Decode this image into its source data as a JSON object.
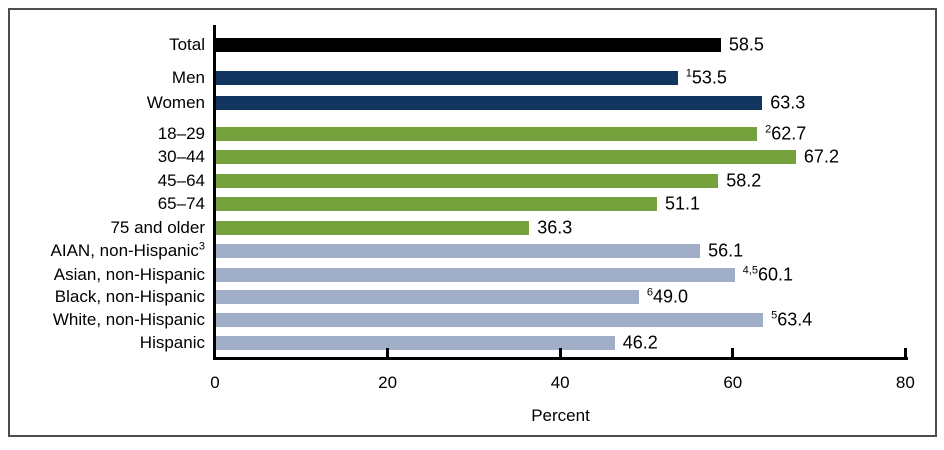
{
  "chart_data": {
    "type": "bar",
    "orientation": "horizontal",
    "title": "",
    "xlabel": "Percent",
    "ylabel": "",
    "xlim": [
      0,
      80
    ],
    "x_ticks": [
      0,
      20,
      40,
      60,
      80
    ],
    "grid": false,
    "legend": false,
    "groups": {
      "total": {
        "color": "#000000"
      },
      "sex": {
        "color": "#12355f"
      },
      "age": {
        "color": "#76a23d"
      },
      "race": {
        "color": "#a1aec8"
      }
    },
    "rows": [
      {
        "label": "Total",
        "label_sup": "",
        "value": 58.5,
        "value_text": "58.5",
        "value_sup": "",
        "group": "total"
      },
      {
        "label": "Men",
        "label_sup": "",
        "value": 53.5,
        "value_text": "53.5",
        "value_sup": "1",
        "group": "sex"
      },
      {
        "label": "Women",
        "label_sup": "",
        "value": 63.3,
        "value_text": "63.3",
        "value_sup": "",
        "group": "sex"
      },
      {
        "label": "18–29",
        "label_sup": "",
        "value": 62.7,
        "value_text": "62.7",
        "value_sup": "2",
        "group": "age"
      },
      {
        "label": "30–44",
        "label_sup": "",
        "value": 67.2,
        "value_text": "67.2",
        "value_sup": "",
        "group": "age"
      },
      {
        "label": "45–64",
        "label_sup": "",
        "value": 58.2,
        "value_text": "58.2",
        "value_sup": "",
        "group": "age"
      },
      {
        "label": "65–74",
        "label_sup": "",
        "value": 51.1,
        "value_text": "51.1",
        "value_sup": "",
        "group": "age"
      },
      {
        "label": "75 and older",
        "label_sup": "",
        "value": 36.3,
        "value_text": "36.3",
        "value_sup": "",
        "group": "age"
      },
      {
        "label": "AIAN, non-Hispanic",
        "label_sup": "3",
        "value": 56.1,
        "value_text": "56.1",
        "value_sup": "",
        "group": "race"
      },
      {
        "label": "Asian, non-Hispanic",
        "label_sup": "",
        "value": 60.1,
        "value_text": "60.1",
        "value_sup": "4,5",
        "group": "race"
      },
      {
        "label": "Black, non-Hispanic",
        "label_sup": "",
        "value": 49.0,
        "value_text": "49.0",
        "value_sup": "6",
        "group": "race"
      },
      {
        "label": "White, non-Hispanic",
        "label_sup": "",
        "value": 63.4,
        "value_text": "63.4",
        "value_sup": "5",
        "group": "race"
      },
      {
        "label": "Hispanic",
        "label_sup": "",
        "value": 46.2,
        "value_text": "46.2",
        "value_sup": "",
        "group": "race"
      }
    ]
  }
}
